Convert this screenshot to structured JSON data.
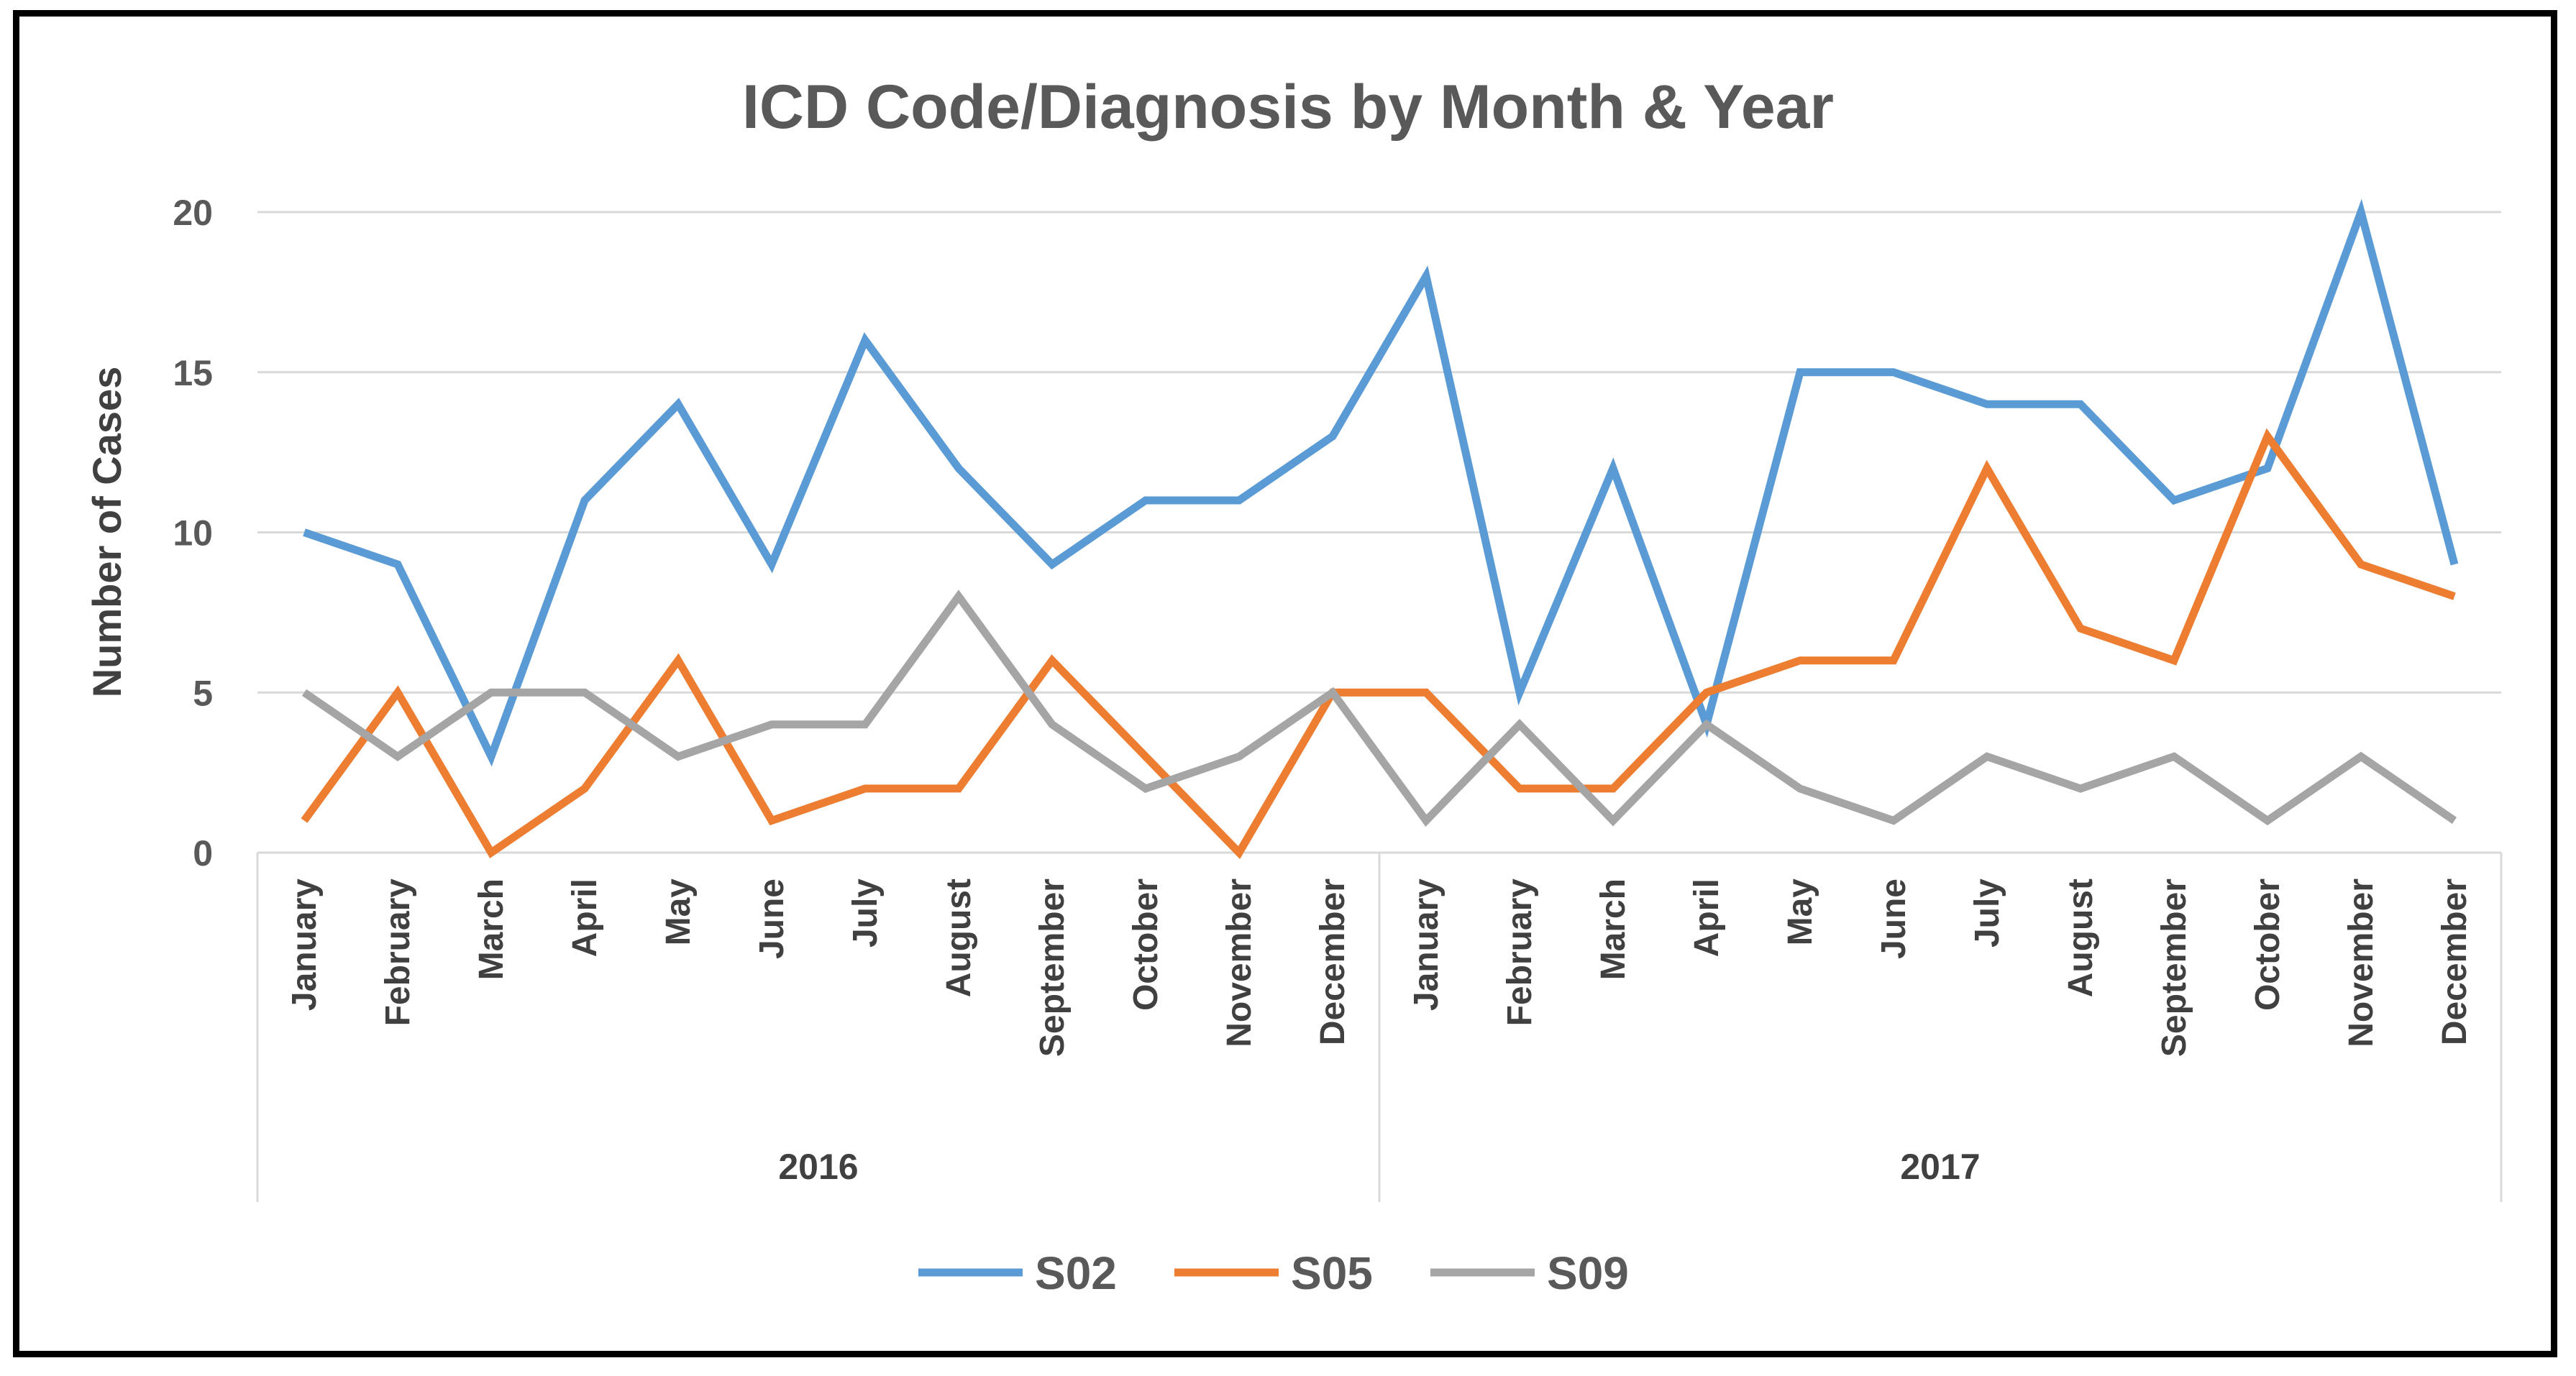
{
  "chart_data": {
    "type": "line",
    "title": "ICD Code/Diagnosis by Month & Year",
    "ylabel": "Number of Cases",
    "xlabel": "",
    "ylim": [
      0,
      20
    ],
    "yticks": [
      0,
      5,
      10,
      15,
      20
    ],
    "categories": [
      "January",
      "February",
      "March",
      "April",
      "May",
      "June",
      "July",
      "August",
      "September",
      "October",
      "November",
      "December",
      "January",
      "February",
      "March",
      "April",
      "May",
      "June",
      "July",
      "August",
      "September",
      "October",
      "November",
      "December"
    ],
    "groups": [
      {
        "label": "2016",
        "start": 0,
        "end": 11
      },
      {
        "label": "2017",
        "start": 12,
        "end": 23
      }
    ],
    "series": [
      {
        "name": "S02",
        "color": "#5b9bd5",
        "values": [
          10,
          9,
          3,
          11,
          14,
          9,
          16,
          12,
          9,
          11,
          11,
          13,
          18,
          5,
          12,
          4,
          15,
          15,
          14,
          14,
          11,
          12,
          20,
          9
        ]
      },
      {
        "name": "S05",
        "color": "#ed7d31",
        "values": [
          1,
          5,
          0,
          2,
          6,
          1,
          2,
          2,
          6,
          3,
          0,
          5,
          5,
          2,
          2,
          5,
          6,
          6,
          12,
          7,
          6,
          13,
          9,
          8
        ]
      },
      {
        "name": "S09",
        "color": "#a5a5a5",
        "values": [
          5,
          3,
          5,
          5,
          3,
          4,
          4,
          8,
          4,
          2,
          3,
          5,
          1,
          4,
          1,
          4,
          2,
          1,
          3,
          2,
          3,
          1,
          3,
          1
        ]
      }
    ],
    "legend_position": "bottom",
    "grid": true
  }
}
